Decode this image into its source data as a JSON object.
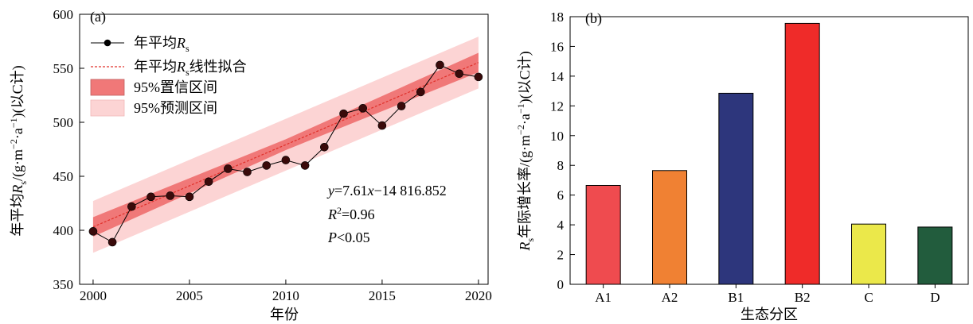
{
  "colors": {
    "pi95": "#fcd4d4",
    "ci95": "#f07878",
    "fit": "#e0302a",
    "point_fill": "#3a0a0a",
    "line": "#000000",
    "bars": [
      "#ef4b4f",
      "#f08133",
      "#2d367c",
      "#ef2b29",
      "#ebe84a",
      "#225c3d"
    ]
  },
  "chart_data": [
    {
      "type": "line",
      "panel_label": "(a)",
      "xlabel": "年份",
      "ylabel": "年平均R_s/(g·m⁻²·a⁻¹)(以C计)",
      "xlim": [
        1999.3,
        2020.5
      ],
      "ylim": [
        350,
        600
      ],
      "xticks": [
        2000,
        2005,
        2010,
        2015,
        2020
      ],
      "yticks": [
        350,
        400,
        450,
        500,
        550,
        600
      ],
      "grid": false,
      "legend_position": "top-left",
      "legend": [
        "年平均R_s",
        "年平均R_s线性拟合",
        "95%置信区间",
        "95%预测区间"
      ],
      "x": [
        2000,
        2001,
        2002,
        2003,
        2004,
        2005,
        2006,
        2007,
        2008,
        2009,
        2010,
        2011,
        2012,
        2013,
        2014,
        2015,
        2016,
        2017,
        2018,
        2019,
        2020
      ],
      "y": [
        399,
        389,
        422,
        431,
        432,
        431,
        445,
        457,
        454,
        460,
        465,
        460,
        477,
        508,
        513,
        497,
        515,
        528,
        553,
        545,
        542
      ],
      "fit": {
        "slope": 7.61,
        "intercept": -14816.852,
        "ci_halfwidth": [
          9,
          5,
          9
        ],
        "pi_halfwidth": 24
      },
      "annotations": {
        "equation": "y=7.61x−14 816.852",
        "r2": "R²=0.96",
        "p": "P<0.05"
      }
    },
    {
      "type": "bar",
      "panel_label": "(b)",
      "xlabel": "生态分区",
      "ylabel": "R_s年际增长率/(g·m⁻²·a⁻¹)(以C计)",
      "ylim": [
        0,
        18
      ],
      "yticks": [
        0,
        2,
        4,
        6,
        8,
        10,
        12,
        14,
        16,
        18
      ],
      "grid": false,
      "categories": [
        "A1",
        "A2",
        "B1",
        "B2",
        "C",
        "D"
      ],
      "values": [
        6.65,
        7.65,
        12.85,
        17.55,
        4.05,
        3.85
      ]
    }
  ]
}
